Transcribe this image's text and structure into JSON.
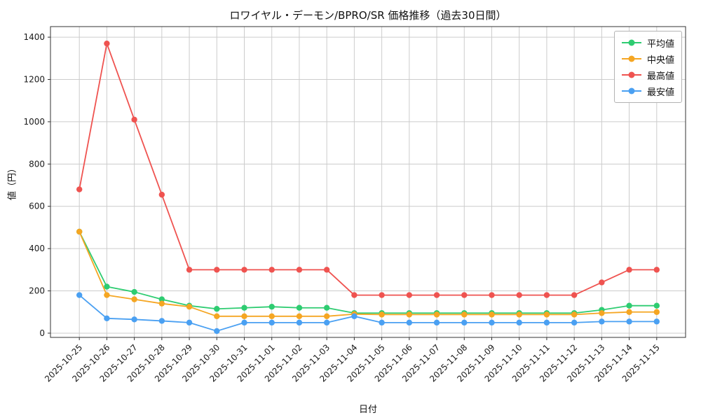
{
  "chart_data": {
    "type": "line",
    "title": "ロワイヤル・デーモン/BPRO/SR 価格推移（過去30日間）",
    "xlabel": "日付",
    "ylabel": "値（円）",
    "ylim": [
      0,
      1400
    ],
    "yticks": [
      0,
      200,
      400,
      600,
      800,
      1000,
      1200,
      1400
    ],
    "grid": true,
    "legend_position": "upper right",
    "categories": [
      "2025-10-25",
      "2025-10-26",
      "2025-10-27",
      "2025-10-28",
      "2025-10-29",
      "2025-10-30",
      "2025-10-31",
      "2025-11-01",
      "2025-11-02",
      "2025-11-03",
      "2025-11-04",
      "2025-11-05",
      "2025-11-06",
      "2025-11-07",
      "2025-11-08",
      "2025-11-09",
      "2025-11-10",
      "2025-11-11",
      "2025-11-12",
      "2025-11-13",
      "2025-11-14",
      "2025-11-15"
    ],
    "series": [
      {
        "key": "average",
        "name": "平均値",
        "color": "#2ecc71",
        "values": [
          480,
          220,
          195,
          160,
          130,
          115,
          120,
          125,
          120,
          120,
          95,
          95,
          95,
          95,
          95,
          95,
          95,
          95,
          95,
          110,
          130,
          130
        ]
      },
      {
        "key": "median",
        "name": "中央値",
        "color": "#f5a623",
        "values": [
          480,
          180,
          160,
          140,
          125,
          80,
          80,
          80,
          80,
          80,
          90,
          88,
          88,
          88,
          88,
          88,
          88,
          88,
          88,
          95,
          100,
          100
        ]
      },
      {
        "key": "max",
        "name": "最高値",
        "color": "#ef5350",
        "values": [
          680,
          1370,
          1010,
          655,
          300,
          300,
          300,
          300,
          300,
          300,
          180,
          180,
          180,
          180,
          180,
          180,
          180,
          180,
          180,
          240,
          300,
          300
        ]
      },
      {
        "key": "min",
        "name": "最安値",
        "color": "#4aa0f2",
        "values": [
          180,
          70,
          65,
          58,
          50,
          10,
          50,
          50,
          50,
          50,
          80,
          50,
          50,
          50,
          50,
          50,
          50,
          50,
          50,
          55,
          55,
          55
        ]
      }
    ]
  }
}
